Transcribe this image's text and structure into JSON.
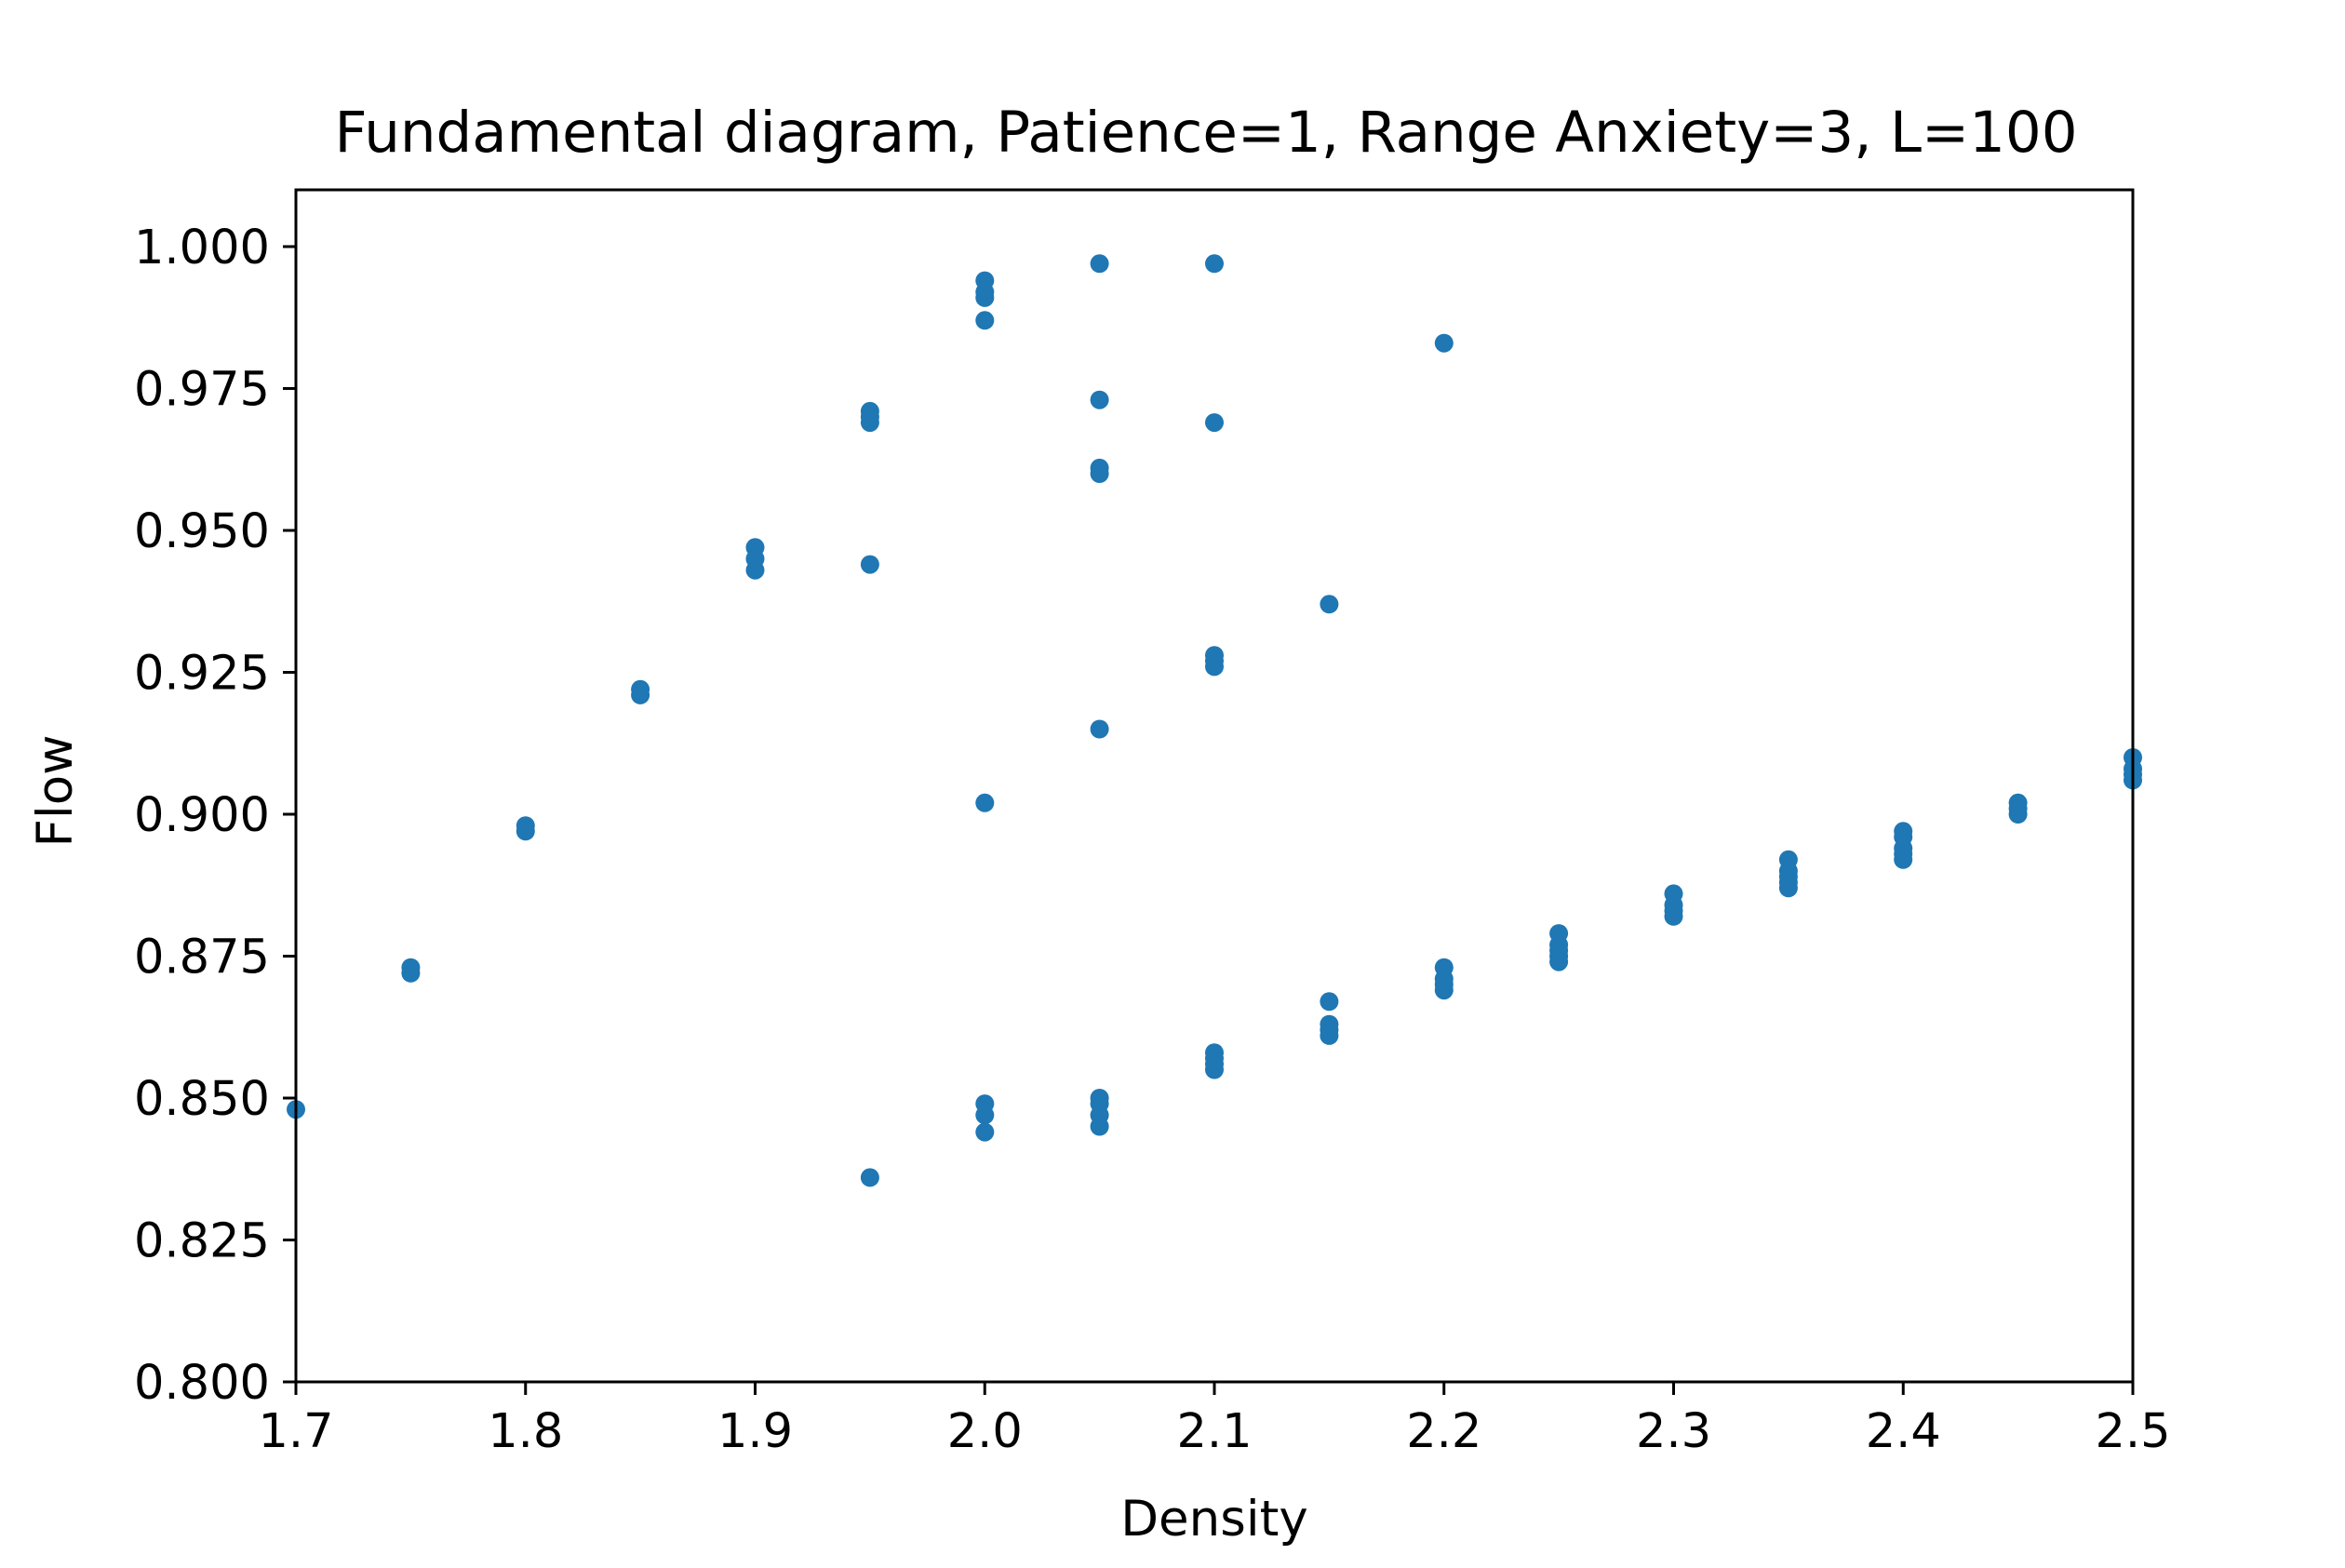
{
  "chart_data": {
    "type": "scatter",
    "title": "Fundamental diagram, Patience=1, Range Anxiety=3, L=100",
    "xlabel": "Density",
    "ylabel": "Flow",
    "xlim": [
      1.7,
      2.5
    ],
    "ylim": [
      0.8,
      1.01
    ],
    "xticks": [
      "1.7",
      "1.8",
      "1.9",
      "2.0",
      "2.1",
      "2.2",
      "2.3",
      "2.4",
      "2.5"
    ],
    "yticks": [
      "0.800",
      "0.825",
      "0.850",
      "0.875",
      "0.900",
      "0.925",
      "0.950",
      "0.975",
      "1.000"
    ],
    "grid": false,
    "marker_color": "#1f77b4",
    "series": [
      {
        "points": [
          [
            1.7,
            0.848
          ],
          [
            1.75,
            0.873
          ],
          [
            1.75,
            0.872
          ],
          [
            1.8,
            0.898
          ],
          [
            1.8,
            0.897
          ],
          [
            1.85,
            0.922
          ],
          [
            1.85,
            0.921
          ],
          [
            1.9,
            0.947
          ],
          [
            1.9,
            0.945
          ],
          [
            1.9,
            0.943
          ],
          [
            1.95,
            0.971
          ],
          [
            1.95,
            0.97
          ],
          [
            1.95,
            0.969
          ],
          [
            1.95,
            0.944
          ],
          [
            1.95,
            0.836
          ],
          [
            2.0,
            0.994
          ],
          [
            2.0,
            0.992
          ],
          [
            2.0,
            0.991
          ],
          [
            2.0,
            0.987
          ],
          [
            2.0,
            0.902
          ],
          [
            2.0,
            0.849
          ],
          [
            2.0,
            0.847
          ],
          [
            2.0,
            0.844
          ],
          [
            2.05,
            0.997
          ],
          [
            2.05,
            0.973
          ],
          [
            2.05,
            0.961
          ],
          [
            2.05,
            0.96
          ],
          [
            2.05,
            0.915
          ],
          [
            2.05,
            0.85
          ],
          [
            2.05,
            0.849
          ],
          [
            2.05,
            0.847
          ],
          [
            2.05,
            0.845
          ],
          [
            2.1,
            0.997
          ],
          [
            2.1,
            0.969
          ],
          [
            2.1,
            0.928
          ],
          [
            2.1,
            0.927
          ],
          [
            2.1,
            0.926
          ],
          [
            2.1,
            0.858
          ],
          [
            2.1,
            0.857
          ],
          [
            2.1,
            0.856
          ],
          [
            2.1,
            0.855
          ],
          [
            2.15,
            0.937
          ],
          [
            2.15,
            0.867
          ],
          [
            2.15,
            0.863
          ],
          [
            2.15,
            0.862
          ],
          [
            2.15,
            0.861
          ],
          [
            2.2,
            0.983
          ],
          [
            2.2,
            0.873
          ],
          [
            2.2,
            0.871
          ],
          [
            2.2,
            0.87
          ],
          [
            2.2,
            0.869
          ],
          [
            2.25,
            0.879
          ],
          [
            2.25,
            0.877
          ],
          [
            2.25,
            0.876
          ],
          [
            2.25,
            0.875
          ],
          [
            2.25,
            0.874
          ],
          [
            2.3,
            0.886
          ],
          [
            2.3,
            0.884
          ],
          [
            2.3,
            0.883
          ],
          [
            2.3,
            0.882
          ],
          [
            2.35,
            0.892
          ],
          [
            2.35,
            0.89
          ],
          [
            2.35,
            0.889
          ],
          [
            2.35,
            0.888
          ],
          [
            2.35,
            0.887
          ],
          [
            2.4,
            0.897
          ],
          [
            2.4,
            0.896
          ],
          [
            2.4,
            0.894
          ],
          [
            2.4,
            0.893
          ],
          [
            2.4,
            0.892
          ],
          [
            2.45,
            0.902
          ],
          [
            2.45,
            0.901
          ],
          [
            2.45,
            0.9
          ],
          [
            2.5,
            0.91
          ],
          [
            2.5,
            0.908
          ],
          [
            2.5,
            0.907
          ],
          [
            2.5,
            0.906
          ]
        ]
      }
    ]
  }
}
